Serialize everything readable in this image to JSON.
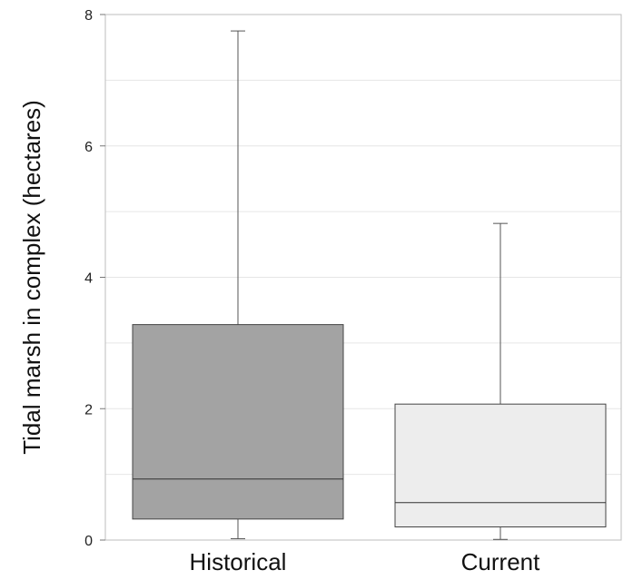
{
  "chart_data": {
    "type": "boxplot",
    "title": "",
    "xlabel": "",
    "ylabel": "Tidal marsh in complex (hectares)",
    "ylim": [
      0,
      8
    ],
    "yticks": [
      0,
      2,
      4,
      6,
      8
    ],
    "gridlines_y": [
      1,
      2,
      3,
      4,
      5,
      6,
      7
    ],
    "grid": true,
    "categories": [
      "Historical",
      "Current"
    ],
    "boxes": [
      {
        "label": "Historical",
        "whisker_low": 0.02,
        "q1": 0.32,
        "median": 0.93,
        "q3": 3.28,
        "whisker_high": 7.75,
        "fill": "#a3a3a3"
      },
      {
        "label": "Current",
        "whisker_low": 0.01,
        "q1": 0.2,
        "median": 0.57,
        "q3": 2.07,
        "whisker_high": 4.82,
        "fill": "#ededed"
      }
    ]
  }
}
